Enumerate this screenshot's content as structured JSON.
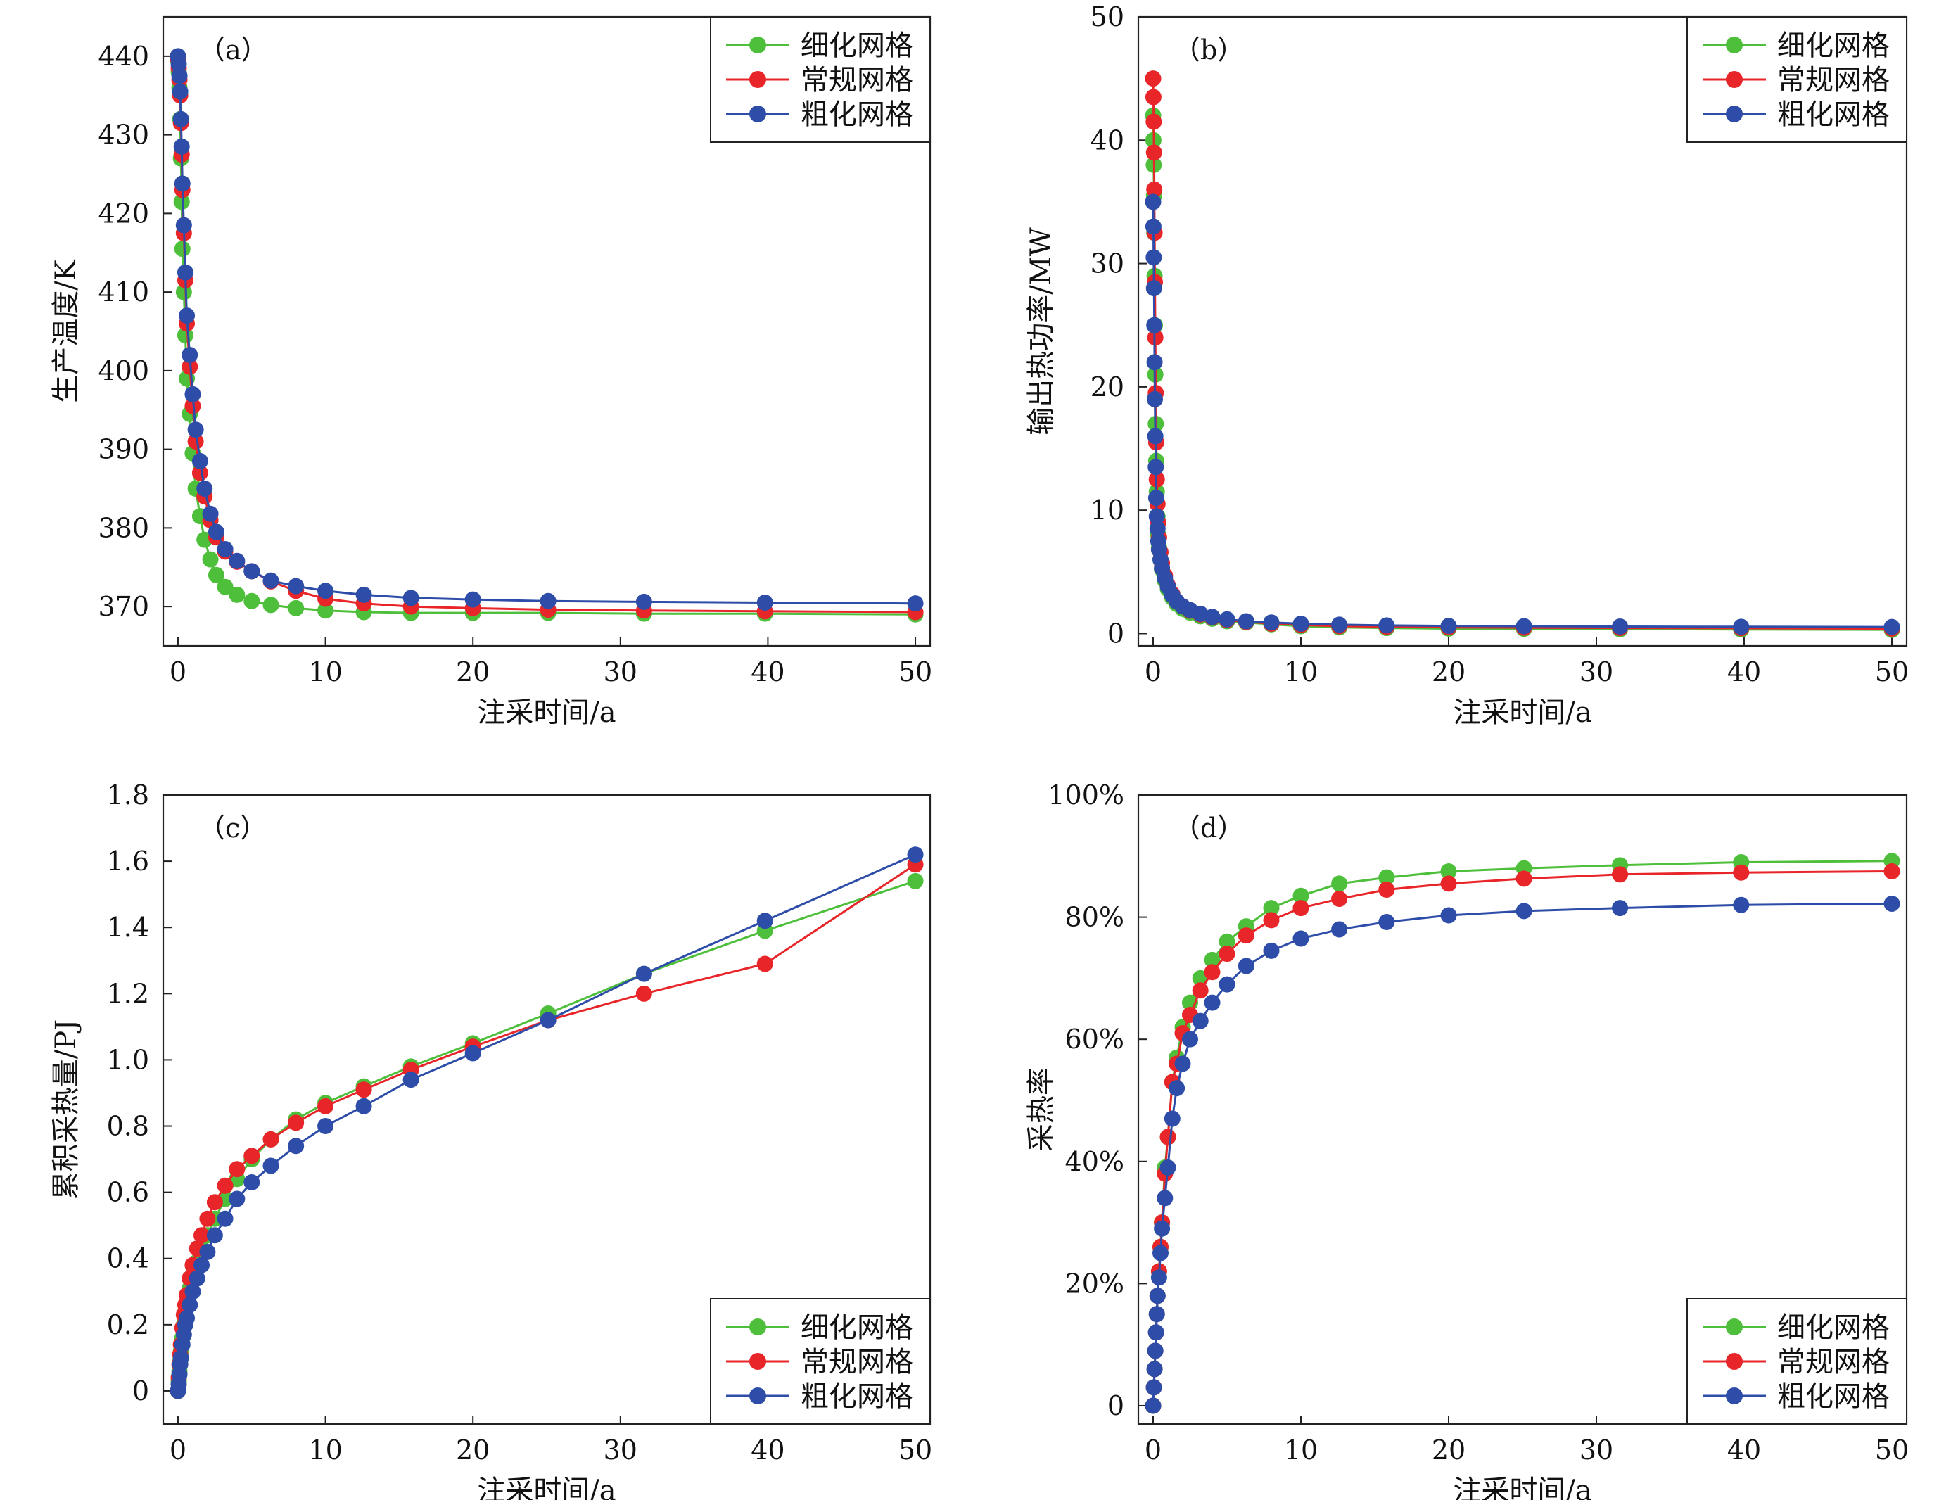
{
  "figure": {
    "xlabel": "注采时间/a",
    "legend": [
      "细化网格",
      "常规网格",
      "粗化网格"
    ],
    "colors": {
      "细化网格": "#4dbf3a",
      "常规网格": "#e8262a",
      "粗化网格": "#2e4da8"
    }
  },
  "chart_data": [
    {
      "id": "a",
      "type": "line",
      "panel_label": "（a）",
      "xlabel": "注采时间/a",
      "ylabel": "生产温度/K",
      "xlim": [
        -1,
        51
      ],
      "ylim": [
        365,
        445
      ],
      "xticks": [
        0,
        10,
        20,
        30,
        40,
        50
      ],
      "yticks": [
        370,
        380,
        390,
        400,
        410,
        420,
        430,
        440
      ],
      "ytick_labels": [
        "370",
        "380",
        "390",
        "400",
        "410",
        "420",
        "430",
        "440"
      ],
      "legend_position": "top-right",
      "series": [
        {
          "name": "细化网格",
          "color": "#4dbf3a",
          "x": [
            0.0,
            0.05,
            0.1,
            0.15,
            0.2,
            0.25,
            0.3,
            0.4,
            0.5,
            0.6,
            0.8,
            1.0,
            1.2,
            1.5,
            1.8,
            2.2,
            2.6,
            3.2,
            4.0,
            5.0,
            6.3,
            8.0,
            10,
            12.6,
            15.8,
            20,
            25.1,
            31.6,
            39.8,
            50
          ],
          "y": [
            439.5,
            438.0,
            436.0,
            432.0,
            427.0,
            421.5,
            415.5,
            410.0,
            404.5,
            399.0,
            394.5,
            389.5,
            385.0,
            381.5,
            378.5,
            376.0,
            374.0,
            372.5,
            371.5,
            370.7,
            370.2,
            369.8,
            369.5,
            369.3,
            369.2,
            369.2,
            369.2,
            369.1,
            369.1,
            369.0
          ]
        },
        {
          "name": "常规网格",
          "color": "#e8262a",
          "x": [
            0.0,
            0.05,
            0.1,
            0.15,
            0.2,
            0.25,
            0.3,
            0.4,
            0.5,
            0.6,
            0.8,
            1.0,
            1.2,
            1.5,
            1.8,
            2.2,
            2.6,
            3.2,
            4.0,
            5.0,
            6.3,
            8.0,
            10,
            12.6,
            15.8,
            20,
            25.1,
            31.6,
            39.8,
            50
          ],
          "y": [
            439.7,
            438.5,
            437.0,
            435.0,
            431.5,
            427.5,
            423.0,
            417.5,
            411.5,
            406.0,
            400.5,
            395.5,
            391.0,
            387.0,
            384.0,
            381.0,
            378.8,
            377.0,
            375.7,
            374.5,
            373.2,
            372.0,
            371.0,
            370.4,
            370.0,
            369.8,
            369.6,
            369.5,
            369.4,
            369.3
          ]
        },
        {
          "name": "粗化网格",
          "color": "#2e4da8",
          "x": [
            0.0,
            0.05,
            0.1,
            0.15,
            0.2,
            0.25,
            0.3,
            0.4,
            0.5,
            0.6,
            0.8,
            1.0,
            1.2,
            1.5,
            1.8,
            2.2,
            2.6,
            3.2,
            4.0,
            5.0,
            6.3,
            8.0,
            10,
            12.6,
            15.8,
            20,
            25.1,
            31.6,
            39.8,
            50
          ],
          "y": [
            440.0,
            439.0,
            437.5,
            435.5,
            432.0,
            428.5,
            423.8,
            418.5,
            412.5,
            407.0,
            402.0,
            397.0,
            392.5,
            388.5,
            385.0,
            381.8,
            379.5,
            377.3,
            375.8,
            374.5,
            373.3,
            372.6,
            372.0,
            371.5,
            371.1,
            370.9,
            370.7,
            370.6,
            370.5,
            370.4
          ]
        }
      ]
    },
    {
      "id": "b",
      "type": "line",
      "panel_label": "（b）",
      "xlabel": "注采时间/a",
      "ylabel": "输出热功率/MW",
      "xlim": [
        -1,
        51
      ],
      "ylim": [
        -1,
        50
      ],
      "xticks": [
        0,
        10,
        20,
        30,
        40,
        50
      ],
      "yticks": [
        0,
        10,
        20,
        30,
        40,
        50
      ],
      "ytick_labels": [
        "0",
        "10",
        "20",
        "30",
        "40",
        "50"
      ],
      "legend_position": "top-right",
      "series": [
        {
          "name": "细化网格",
          "color": "#4dbf3a",
          "x": [
            0.0,
            0.02,
            0.04,
            0.06,
            0.08,
            0.1,
            0.12,
            0.15,
            0.18,
            0.21,
            0.25,
            0.3,
            0.35,
            0.4,
            0.5,
            0.6,
            0.8,
            1.0,
            1.3,
            1.6,
            2.0,
            2.5,
            3.2,
            4.0,
            5.0,
            6.3,
            8.0,
            10,
            12.6,
            15.8,
            20,
            25.1,
            31.6,
            39.8,
            50
          ],
          "y": [
            42.0,
            40.0,
            38.0,
            35.5,
            32.5,
            29.0,
            25.0,
            21.0,
            17.0,
            14.0,
            11.5,
            9.5,
            8.0,
            7.0,
            6.0,
            5.2,
            4.3,
            3.6,
            2.9,
            2.4,
            2.0,
            1.7,
            1.4,
            1.2,
            1.0,
            0.9,
            0.75,
            0.6,
            0.5,
            0.45,
            0.4,
            0.38,
            0.35,
            0.33,
            0.3
          ]
        },
        {
          "name": "常规网格",
          "color": "#e8262a",
          "x": [
            0.0,
            0.02,
            0.04,
            0.06,
            0.08,
            0.1,
            0.12,
            0.15,
            0.18,
            0.21,
            0.25,
            0.3,
            0.35,
            0.4,
            0.5,
            0.6,
            0.8,
            1.0,
            1.3,
            1.6,
            2.0,
            2.5,
            3.2,
            4.0,
            5.0,
            6.3,
            8.0,
            10,
            12.6,
            15.8,
            20,
            25.1,
            31.6,
            39.8,
            50
          ],
          "y": [
            45.0,
            43.5,
            41.5,
            39.0,
            36.0,
            32.5,
            28.5,
            24.0,
            19.5,
            15.5,
            12.5,
            10.5,
            9.0,
            7.8,
            6.6,
            5.7,
            4.7,
            3.9,
            3.2,
            2.6,
            2.2,
            1.85,
            1.55,
            1.3,
            1.1,
            0.95,
            0.8,
            0.7,
            0.6,
            0.55,
            0.5,
            0.47,
            0.45,
            0.43,
            0.4
          ]
        },
        {
          "name": "粗化网格",
          "color": "#2e4da8",
          "x": [
            0.0,
            0.02,
            0.04,
            0.06,
            0.08,
            0.1,
            0.12,
            0.15,
            0.18,
            0.21,
            0.25,
            0.3,
            0.35,
            0.4,
            0.5,
            0.6,
            0.8,
            1.0,
            1.3,
            1.6,
            2.0,
            2.5,
            3.2,
            4.0,
            5.0,
            6.3,
            8.0,
            10,
            12.6,
            15.8,
            20,
            25.1,
            31.6,
            39.8,
            50
          ],
          "y": [
            35.0,
            33.0,
            30.5,
            28.0,
            25.0,
            22.0,
            19.0,
            16.0,
            13.5,
            11.0,
            9.5,
            8.5,
            7.5,
            6.8,
            6.0,
            5.3,
            4.5,
            3.8,
            3.1,
            2.6,
            2.2,
            1.9,
            1.6,
            1.35,
            1.15,
            1.0,
            0.9,
            0.8,
            0.72,
            0.66,
            0.62,
            0.6,
            0.57,
            0.55,
            0.53
          ]
        }
      ]
    },
    {
      "id": "c",
      "type": "line",
      "panel_label": "（c）",
      "xlabel": "注采时间/a",
      "ylabel": "累积采热量/PJ",
      "xlim": [
        -1,
        51
      ],
      "ylim": [
        -0.1,
        1.8
      ],
      "xticks": [
        0,
        10,
        20,
        30,
        40,
        50
      ],
      "yticks": [
        0,
        0.2,
        0.4,
        0.6,
        0.8,
        1.0,
        1.2,
        1.4,
        1.6,
        1.8
      ],
      "ytick_labels": [
        "0",
        "0.2",
        "0.4",
        "0.6",
        "0.8",
        "1.0",
        "1.2",
        "1.4",
        "1.6",
        "1.8"
      ],
      "legend_position": "bottom-right",
      "series": [
        {
          "name": "细化网格",
          "color": "#4dbf3a",
          "x": [
            0.0,
            0.05,
            0.1,
            0.15,
            0.2,
            0.3,
            0.4,
            0.5,
            0.6,
            0.8,
            1.0,
            1.3,
            1.6,
            2.0,
            2.5,
            3.2,
            4.0,
            5.0,
            6.3,
            8.0,
            10,
            12.6,
            15.8,
            20,
            25.1,
            31.6,
            39.8,
            50
          ],
          "y": [
            0.0,
            0.03,
            0.06,
            0.09,
            0.12,
            0.16,
            0.2,
            0.23,
            0.26,
            0.31,
            0.35,
            0.39,
            0.43,
            0.47,
            0.52,
            0.58,
            0.64,
            0.7,
            0.76,
            0.82,
            0.87,
            0.92,
            0.98,
            1.05,
            1.14,
            1.26,
            1.39,
            1.54
          ]
        },
        {
          "name": "常规网格",
          "color": "#e8262a",
          "x": [
            0.0,
            0.05,
            0.1,
            0.15,
            0.2,
            0.3,
            0.4,
            0.5,
            0.6,
            0.8,
            1.0,
            1.3,
            1.6,
            2.0,
            2.5,
            3.2,
            4.0,
            5.0,
            6.3,
            8.0,
            10,
            12.6,
            15.8,
            20,
            25.1,
            31.6,
            39.8,
            50
          ],
          "y": [
            0.0,
            0.04,
            0.08,
            0.11,
            0.14,
            0.19,
            0.23,
            0.26,
            0.29,
            0.34,
            0.38,
            0.43,
            0.47,
            0.52,
            0.57,
            0.62,
            0.67,
            0.71,
            0.76,
            0.81,
            0.86,
            0.91,
            0.97,
            1.04,
            1.12,
            1.2,
            1.29,
            1.59
          ]
        },
        {
          "name": "粗化网格",
          "color": "#2e4da8",
          "x": [
            0.0,
            0.05,
            0.1,
            0.15,
            0.2,
            0.3,
            0.4,
            0.5,
            0.6,
            0.8,
            1.0,
            1.3,
            1.6,
            2.0,
            2.5,
            3.2,
            4.0,
            5.0,
            6.3,
            8.0,
            10,
            12.6,
            15.8,
            20,
            25.1,
            31.6,
            39.8,
            50
          ],
          "y": [
            0.0,
            0.02,
            0.05,
            0.08,
            0.1,
            0.14,
            0.17,
            0.2,
            0.22,
            0.26,
            0.3,
            0.34,
            0.38,
            0.42,
            0.47,
            0.52,
            0.58,
            0.63,
            0.68,
            0.74,
            0.8,
            0.86,
            0.94,
            1.02,
            1.12,
            1.26,
            1.42,
            1.62
          ]
        }
      ]
    },
    {
      "id": "d",
      "type": "line",
      "panel_label": "（d）",
      "xlabel": "注采时间/a",
      "ylabel": "采热率",
      "xlim": [
        -1,
        51
      ],
      "ylim": [
        -3,
        100
      ],
      "xticks": [
        0,
        10,
        20,
        30,
        40,
        50
      ],
      "yticks": [
        0,
        20,
        40,
        60,
        80,
        100
      ],
      "ytick_labels": [
        "0",
        "20%",
        "40%",
        "60%",
        "80%",
        "100%"
      ],
      "legend_position": "bottom-right",
      "series": [
        {
          "name": "细化网格",
          "color": "#4dbf3a",
          "x": [
            0.0,
            0.05,
            0.1,
            0.15,
            0.2,
            0.25,
            0.3,
            0.4,
            0.5,
            0.6,
            0.8,
            1.0,
            1.3,
            1.6,
            2.0,
            2.5,
            3.2,
            4.0,
            5.0,
            6.3,
            8.0,
            10,
            12.6,
            15.8,
            20,
            25.1,
            31.6,
            39.8,
            50
          ],
          "y": [
            0,
            3,
            6,
            9,
            12,
            15,
            18,
            22,
            26,
            30,
            39,
            44,
            53,
            57,
            62,
            66,
            70,
            73,
            76,
            78.5,
            81.5,
            83.5,
            85.5,
            86.5,
            87.5,
            88,
            88.5,
            89,
            89.2
          ]
        },
        {
          "name": "常规网格",
          "color": "#e8262a",
          "x": [
            0.0,
            0.05,
            0.1,
            0.15,
            0.2,
            0.25,
            0.3,
            0.4,
            0.5,
            0.6,
            0.8,
            1.0,
            1.3,
            1.6,
            2.0,
            2.5,
            3.2,
            4.0,
            5.0,
            6.3,
            8.0,
            10,
            12.6,
            15.8,
            20,
            25.1,
            31.6,
            39.8,
            50
          ],
          "y": [
            0,
            3,
            6,
            9,
            12,
            15,
            18,
            22,
            26,
            30,
            38,
            44,
            53,
            56,
            61,
            64,
            68,
            71,
            74,
            77,
            79.5,
            81.5,
            83,
            84.5,
            85.5,
            86.3,
            87,
            87.3,
            87.5
          ]
        },
        {
          "name": "粗化网格",
          "color": "#2e4da8",
          "x": [
            0.0,
            0.05,
            0.1,
            0.15,
            0.2,
            0.25,
            0.3,
            0.4,
            0.5,
            0.6,
            0.8,
            1.0,
            1.3,
            1.6,
            2.0,
            2.5,
            3.2,
            4.0,
            5.0,
            6.3,
            8.0,
            10,
            12.6,
            15.8,
            20,
            25.1,
            31.6,
            39.8,
            50
          ],
          "y": [
            0,
            3,
            6,
            9,
            12,
            15,
            18,
            21,
            25,
            29,
            34,
            39,
            47,
            52,
            56,
            60,
            63,
            66,
            69,
            72,
            74.5,
            76.5,
            78,
            79.2,
            80.3,
            81,
            81.5,
            82,
            82.2
          ]
        }
      ]
    }
  ]
}
